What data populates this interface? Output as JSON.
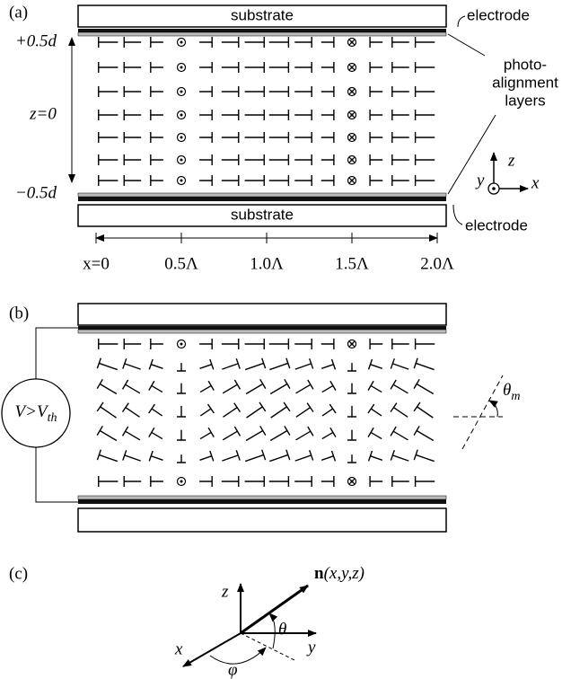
{
  "panel_a": {
    "label": "(a)",
    "substrate_top": "substrate",
    "substrate_bottom": "substrate",
    "electrode_top": "electrode",
    "electrode_bottom": "electrode",
    "z_top": "+0.5d",
    "z_mid": "z=0",
    "z_bottom": "−0.5d",
    "alignment_label": [
      "photo-",
      "alignment",
      "layers"
    ],
    "axes": {
      "z": "z",
      "y": "y",
      "x": "x"
    },
    "x_labels": [
      "x=0",
      "0.5Λ",
      "1.0Λ",
      "1.5Λ",
      "2.0Λ"
    ]
  },
  "panel_b": {
    "label": "(b)",
    "voltage": {
      "main": "V>V",
      "sub": "th"
    },
    "angle": {
      "main": "θ",
      "sub": "m"
    }
  },
  "panel_c": {
    "label": "(c)",
    "z": "z",
    "n": {
      "bold": "n",
      "rest": "(x,y,z)"
    },
    "theta": "θ",
    "y": "y",
    "x": "x",
    "phi": "φ"
  }
}
